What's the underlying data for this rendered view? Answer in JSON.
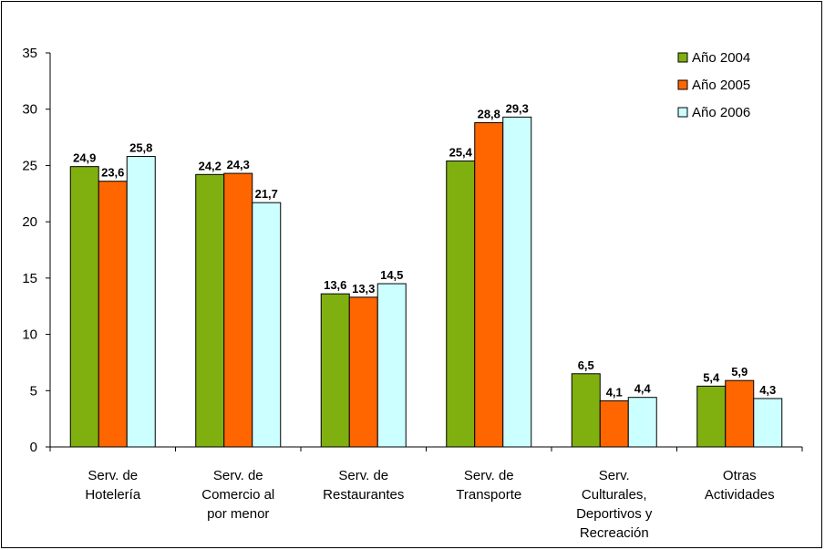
{
  "chart_data": {
    "type": "bar",
    "categories": [
      [
        "Serv. de",
        "Hotelería"
      ],
      [
        "Serv. de",
        "Comercio al",
        "por menor"
      ],
      [
        "Serv. de",
        "Restaurantes"
      ],
      [
        "Serv. de",
        "Transporte"
      ],
      [
        "Serv.",
        "Culturales,",
        "Deportivos y",
        "Recreación"
      ],
      [
        "Otras",
        "Actividades"
      ]
    ],
    "series": [
      {
        "name": "Año 2004",
        "color": "#80B010",
        "values": [
          24.9,
          24.2,
          13.6,
          25.4,
          6.5,
          5.4
        ],
        "labels": [
          "24,9",
          "24,2",
          "13,6",
          "25,4",
          "6,5",
          "5,4"
        ]
      },
      {
        "name": "Año 2005",
        "color": "#FF6600",
        "values": [
          23.6,
          24.3,
          13.3,
          28.8,
          4.1,
          5.9
        ],
        "labels": [
          "23,6",
          "24,3",
          "13,3",
          "28,8",
          "4,1",
          "5,9"
        ]
      },
      {
        "name": "Año 2006",
        "color": "#CCFFFF",
        "values": [
          25.8,
          21.7,
          14.5,
          29.3,
          4.4,
          4.3
        ],
        "labels": [
          "25,8",
          "21,7",
          "14,5",
          "29,3",
          "4,4",
          "4,3"
        ]
      }
    ],
    "ylim": [
      0,
      35
    ],
    "yticks": [
      "0",
      "5",
      "10",
      "15",
      "20",
      "25",
      "30",
      "35"
    ],
    "grid": false,
    "legend": "top-right",
    "title": "",
    "xlabel": "",
    "ylabel": ""
  }
}
